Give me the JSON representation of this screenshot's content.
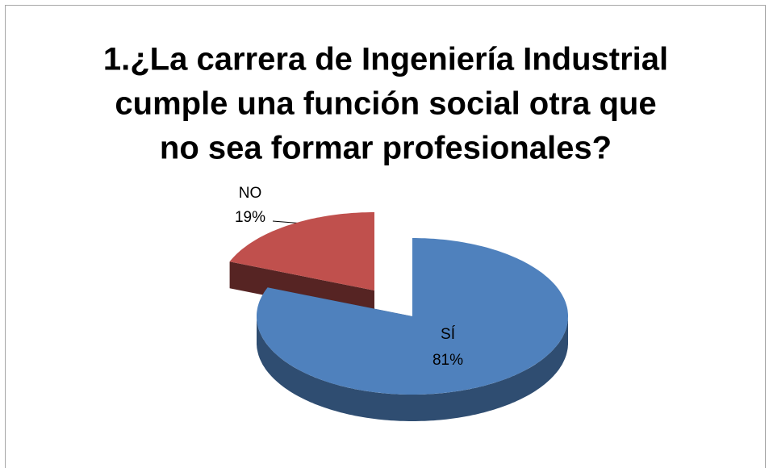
{
  "chart_data": {
    "type": "pie",
    "title": [
      "1.¿La carrera de Ingeniería Industrial",
      "cumple una función social otra que",
      "no sea  formar profesionales?"
    ],
    "categories": [
      "SÍ",
      "NO"
    ],
    "values": [
      81,
      19
    ],
    "value_labels": [
      "81%",
      "19%"
    ],
    "colors": [
      "#4f81bd",
      "#c0504d"
    ]
  }
}
